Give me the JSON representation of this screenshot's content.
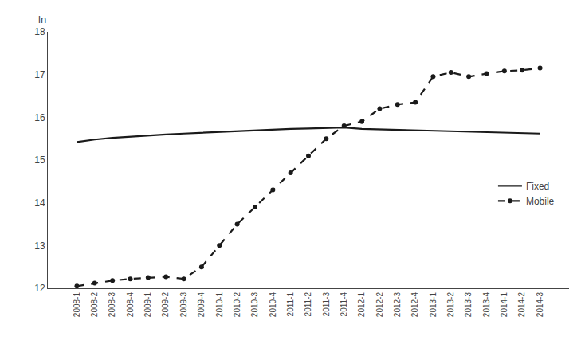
{
  "chart_data": {
    "type": "line",
    "ylabel": "ln",
    "categories": [
      "2008-1",
      "2008-2",
      "2008-3",
      "2008-4",
      "2009-1",
      "2009-2",
      "2009-3",
      "2009-4",
      "2010-1",
      "2010-2",
      "2010-3",
      "2010-4",
      "2011-1",
      "2011-2",
      "2011-3",
      "2011-4",
      "2012-1",
      "2012-2",
      "2012-3",
      "2012-4",
      "2013-1",
      "2013-2",
      "2013-3",
      "2013-4",
      "2014-1",
      "2014-2",
      "2014-3"
    ],
    "series": [
      {
        "name": "Fixed",
        "color": "#1a1a1a",
        "line_style": "solid",
        "values": [
          15.42,
          15.48,
          15.52,
          15.55,
          15.58,
          15.6,
          15.62,
          15.64,
          15.66,
          15.68,
          15.7,
          15.72,
          15.73,
          15.74,
          15.75,
          15.76,
          15.73,
          15.72,
          15.71,
          15.7,
          15.68,
          15.67,
          15.66,
          15.65,
          15.64,
          15.63,
          15.62
        ]
      },
      {
        "name": "Mobile",
        "color": "#1a1a1a",
        "line_style": "dashed",
        "marker": "circle",
        "values": [
          12.05,
          12.12,
          12.18,
          12.22,
          12.25,
          12.27,
          12.22,
          12.5,
          13.0,
          13.5,
          13.9,
          14.3,
          14.7,
          15.1,
          15.5,
          15.8,
          15.9,
          16.2,
          16.3,
          16.35,
          16.95,
          17.05,
          16.95,
          17.02,
          17.08,
          17.1,
          17.15
        ]
      }
    ],
    "ylim": [
      12,
      18
    ],
    "yticks": [
      12,
      13,
      14,
      15,
      16,
      17,
      18
    ],
    "grid": false,
    "legend": "right"
  }
}
